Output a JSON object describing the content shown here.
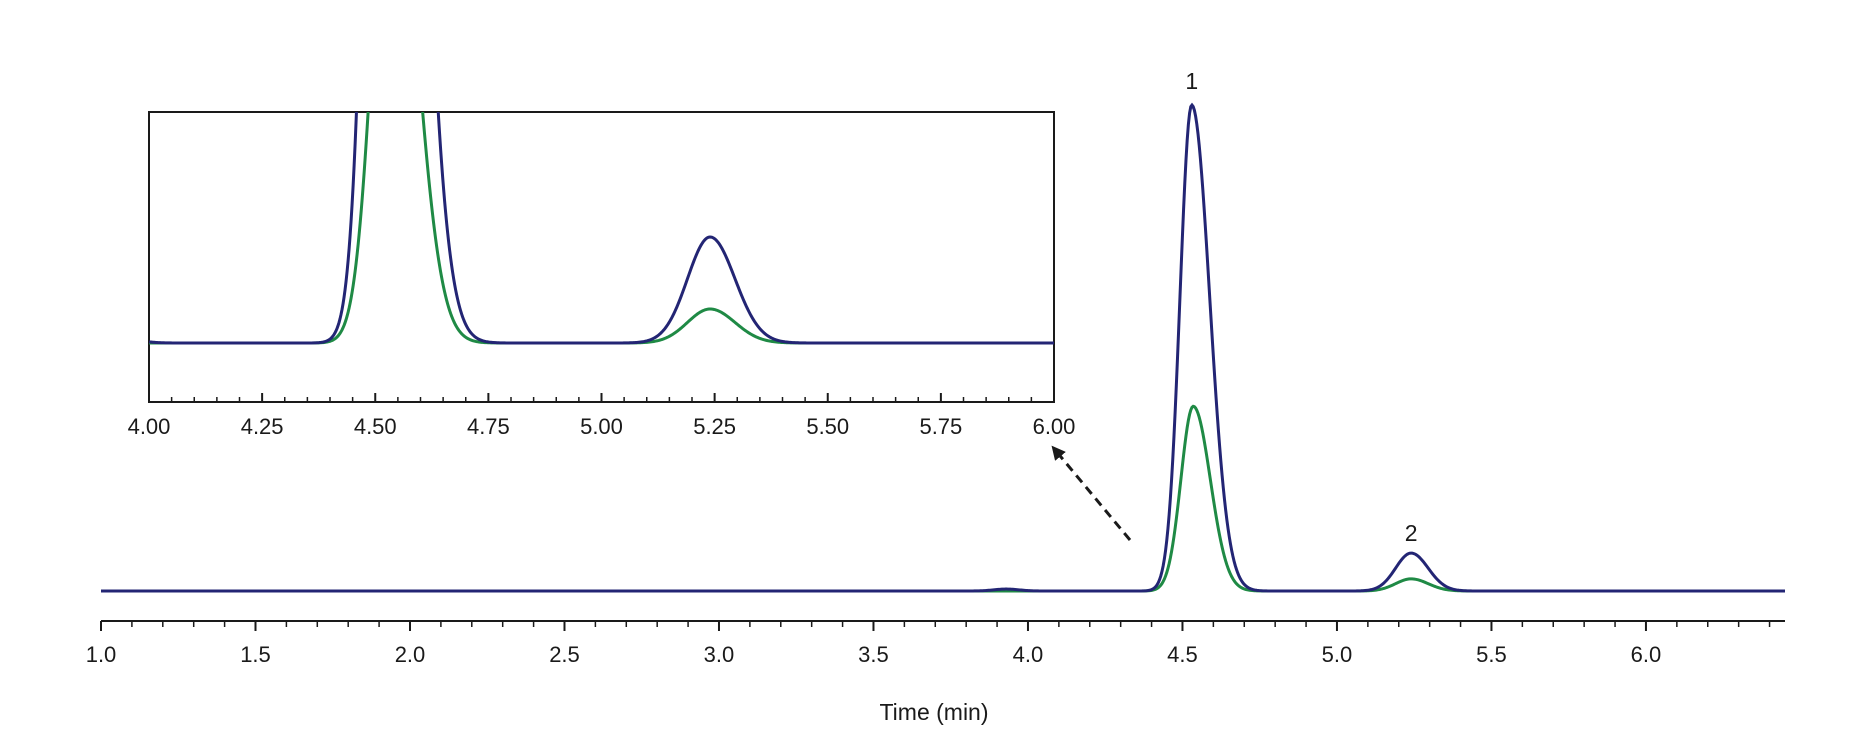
{
  "chart_data": [
    {
      "id": "main",
      "type": "line",
      "title": "",
      "xlabel": "Time (min)",
      "ylabel": "",
      "xlim": [
        1.0,
        6.45
      ],
      "ylim": [
        0,
        1.0
      ],
      "x_ticks": [
        "1.0",
        "1.5",
        "2.0",
        "2.5",
        "3.0",
        "3.5",
        "4.0",
        "4.5",
        "5.0",
        "5.5",
        "6.0"
      ],
      "minor_tick_step": 0.1,
      "grid": false,
      "series": [
        {
          "name": "trace-navy",
          "color": "#232574",
          "peaks": [
            {
              "label": "1",
              "center": 4.53,
              "height": 1.0,
              "sigma_left": 0.038,
              "sigma_right": 0.058
            },
            {
              "label": "2",
              "center": 5.24,
              "height": 0.078,
              "sigma_left": 0.05,
              "sigma_right": 0.055
            },
            {
              "label": "",
              "center": 3.93,
              "height": 0.004,
              "sigma_left": 0.04,
              "sigma_right": 0.04
            }
          ]
        },
        {
          "name": "trace-green",
          "color": "#1f8a45",
          "peaks": [
            {
              "label": "",
              "center": 4.535,
              "height": 0.38,
              "sigma_left": 0.04,
              "sigma_right": 0.055
            },
            {
              "label": "",
              "center": 5.24,
              "height": 0.025,
              "sigma_left": 0.05,
              "sigma_right": 0.055
            }
          ]
        }
      ],
      "annotations": [
        {
          "text": "1",
          "x": 4.53
        },
        {
          "text": "2",
          "x": 5.24
        }
      ]
    },
    {
      "id": "inset",
      "type": "line",
      "title": "",
      "xlabel": "",
      "ylabel": "",
      "xlim": [
        4.0,
        6.0
      ],
      "ylim": [
        0,
        0.17
      ],
      "x_ticks": [
        "4.00",
        "4.25",
        "4.50",
        "4.75",
        "5.00",
        "5.25",
        "5.50",
        "5.75",
        "6.00"
      ],
      "minor_tick_step": 0.05,
      "grid": false,
      "legend": "none",
      "placement": "top-left"
    }
  ],
  "arrow": {
    "from": "main-peak-1-base",
    "to": "inset-bottom-right",
    "style": "dashed"
  },
  "colors": {
    "axis": "#1a1a1a",
    "navy": "#232574",
    "green": "#1f8a45",
    "arrow": "#1a1a1a"
  }
}
